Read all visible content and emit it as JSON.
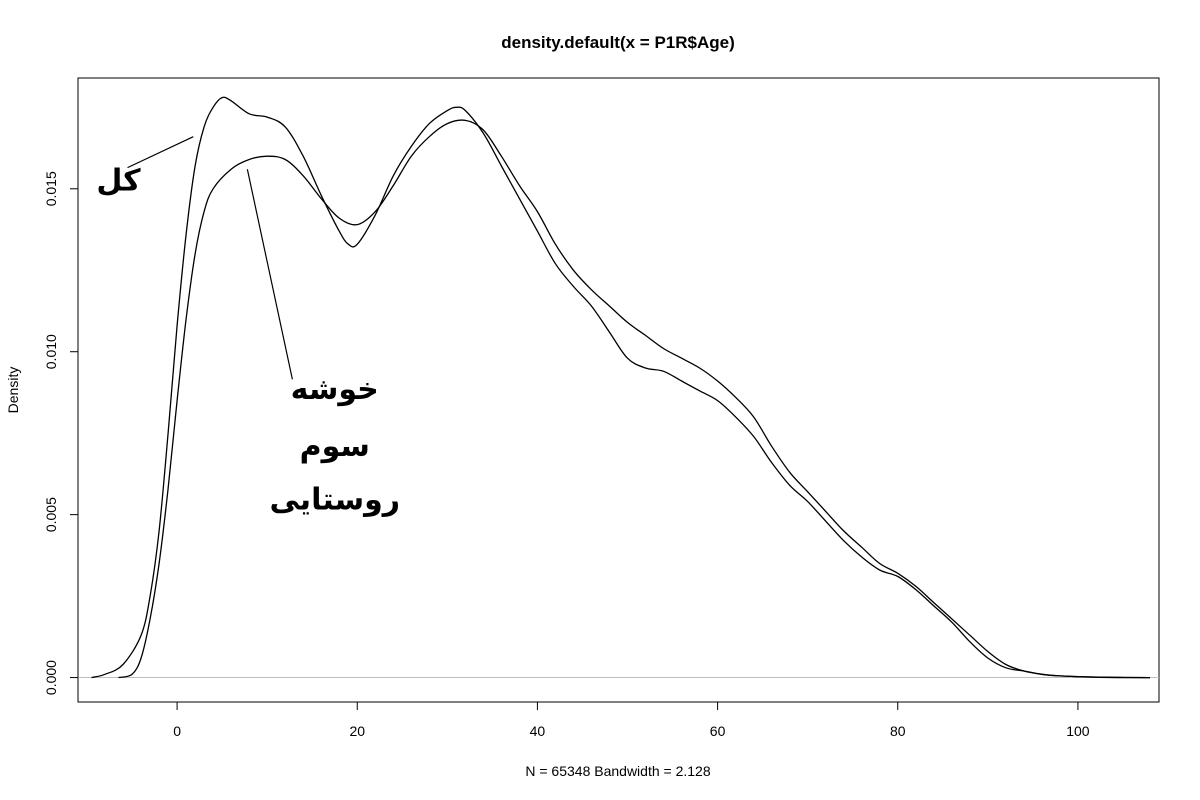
{
  "chart_data": {
    "type": "line",
    "title": "density.default(x = P1R$Age)",
    "xlabel": "N = 65348   Bandwidth = 2.128",
    "ylabel": "Density",
    "xlim": [
      -11,
      109
    ],
    "ylim": [
      -0.00075,
      0.0184
    ],
    "x_ticks": [
      0,
      20,
      40,
      60,
      80,
      100
    ],
    "x_tick_labels": [
      "0",
      "20",
      "40",
      "60",
      "80",
      "100"
    ],
    "y_ticks": [
      0,
      0.005,
      0.01,
      0.015
    ],
    "y_tick_labels": [
      "0.000",
      "0.005",
      "0.010",
      "0.015"
    ],
    "grid": false,
    "baseline": 0,
    "series": [
      {
        "x": [
          -9.5,
          -8,
          -6,
          -4,
          -3,
          -2,
          -1,
          0,
          1,
          2,
          3,
          4,
          5,
          6,
          8,
          10,
          12,
          14,
          16,
          18,
          19,
          20,
          22,
          24,
          26,
          28,
          30,
          31,
          32,
          34,
          36,
          38,
          40,
          42,
          44,
          46,
          48,
          50,
          52,
          54,
          56,
          58,
          60,
          62,
          64,
          66,
          68,
          70,
          72,
          74,
          76,
          78,
          80,
          82,
          84,
          86,
          88,
          90,
          92,
          94,
          96,
          98,
          100,
          102,
          105,
          108
        ],
        "y": [
          0,
          0.0001,
          0.0004,
          0.0013,
          0.0025,
          0.0045,
          0.0075,
          0.0108,
          0.0136,
          0.0157,
          0.0169,
          0.0175,
          0.0178,
          0.0177,
          0.0173,
          0.0172,
          0.0169,
          0.016,
          0.0148,
          0.0137,
          0.0133,
          0.0133,
          0.0142,
          0.0154,
          0.0163,
          0.017,
          0.0174,
          0.0175,
          0.0174,
          0.0167,
          0.0157,
          0.0147,
          0.0137,
          0.0127,
          0.012,
          0.0114,
          0.0106,
          0.0098,
          0.0095,
          0.0094,
          0.0091,
          0.0088,
          0.0085,
          0.008,
          0.0074,
          0.0066,
          0.0059,
          0.0054,
          0.0048,
          0.0042,
          0.0037,
          0.0033,
          0.0031,
          0.0027,
          0.0022,
          0.0017,
          0.0011,
          0.0006,
          0.0003,
          0.0002,
          0.0001,
          5e-05,
          3e-05,
          1e-05,
          0,
          0
        ]
      },
      {
        "x": [
          -6.5,
          -5,
          -4,
          -3,
          -2,
          -1,
          0,
          1,
          2,
          3,
          4,
          6,
          8,
          10,
          12,
          14,
          16,
          18,
          20,
          22,
          24,
          26,
          28,
          30,
          32,
          34,
          36,
          38,
          40,
          42,
          44,
          46,
          48,
          50,
          52,
          54,
          56,
          58,
          60,
          62,
          64,
          66,
          68,
          70,
          72,
          74,
          76,
          78,
          80,
          82,
          84,
          86,
          88,
          90,
          92,
          94,
          96,
          98,
          100,
          103,
          108
        ],
        "y": [
          0,
          0.0001,
          0.0006,
          0.0018,
          0.0035,
          0.0058,
          0.0085,
          0.011,
          0.013,
          0.0143,
          0.015,
          0.0156,
          0.0159,
          0.016,
          0.0159,
          0.0154,
          0.0147,
          0.0141,
          0.0139,
          0.0143,
          0.0151,
          0.016,
          0.0166,
          0.017,
          0.0171,
          0.0168,
          0.016,
          0.0151,
          0.0143,
          0.0133,
          0.0125,
          0.0119,
          0.0114,
          0.0109,
          0.0105,
          0.0101,
          0.0098,
          0.0095,
          0.0091,
          0.0086,
          0.008,
          0.0071,
          0.0063,
          0.0057,
          0.0051,
          0.0045,
          0.004,
          0.0035,
          0.0032,
          0.0028,
          0.0023,
          0.0018,
          0.0013,
          0.0008,
          0.0004,
          0.0002,
          0.0001,
          5e-05,
          3e-05,
          1e-05,
          0
        ]
      }
    ],
    "annotations": [
      {
        "text": "کل",
        "x": -6.5,
        "y": 0.01495
      },
      {
        "text": "خوشه",
        "x": 17.5,
        "y": 0.00855
      },
      {
        "text": "سوم",
        "x": 17.5,
        "y": 0.0068
      },
      {
        "text": "روستایی",
        "x": 17.5,
        "y": 0.00515
      }
    ],
    "pointer_lines": [
      {
        "x1": -5.5,
        "y1": 0.01565,
        "x2": 1.8,
        "y2": 0.0166
      },
      {
        "x1": 7.8,
        "y1": 0.0156,
        "x2": 12.8,
        "y2": 0.00915
      }
    ]
  }
}
